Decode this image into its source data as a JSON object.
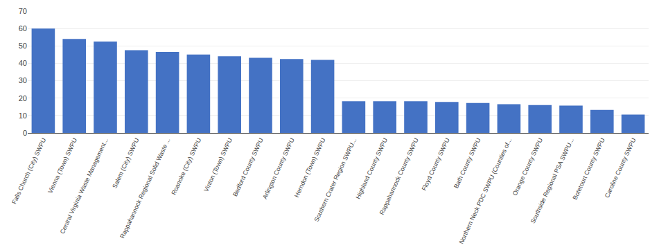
{
  "chart_data": {
    "type": "bar",
    "categories": [
      "Falls Church (City) SWPU",
      "Vienna (Town) SWPU",
      "Central Virginia Waste Management...",
      "Salem (City) SWPU",
      "Rappahannock Regional Solid Waste ...",
      "Roanoke (City) SWPU",
      "Vinton (Town) SWPU",
      "Bedford County SWPU",
      "Arlington County SWPU",
      "Herndon (Town) SWPU",
      "Southern Crater Region SWPU...",
      "Highland County SWPU",
      "Rappahannock County SWPU",
      "Floyd County SWPU",
      "Bath County SWPU",
      "Northern Neck PDC SWPU (Counties of...",
      "Orange County SWPU",
      "Southside Regional PSA SWPU...",
      "Botetourt County SWPU",
      "Caroline County SWPU"
    ],
    "values": [
      60.0,
      54.0,
      52.5,
      47.5,
      46.5,
      45.0,
      44.0,
      43.2,
      42.5,
      42.0,
      18.2,
      18.2,
      18.2,
      17.8,
      17.2,
      16.5,
      16.0,
      15.7,
      13.2,
      10.5
    ],
    "color": "#4472C4",
    "ylim": [
      0,
      70
    ],
    "yticks": [
      0,
      10,
      20,
      30,
      40,
      50,
      60,
      70
    ],
    "grid": true
  }
}
